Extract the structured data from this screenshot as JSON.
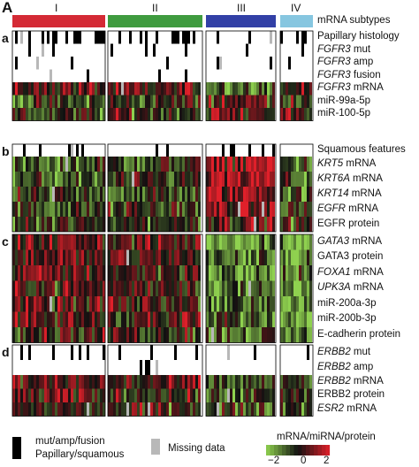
{
  "figure_letter": "A",
  "groups": [
    {
      "label": "I",
      "color": "#d42a35"
    },
    {
      "label": "II",
      "color": "#3f9b3f"
    },
    {
      "label": "III",
      "color": "#3240a6"
    },
    {
      "label": "IV",
      "color": "#86c6e0"
    }
  ],
  "subtype_label": "mRNA subtypes",
  "panels": [
    {
      "letter": "a",
      "rows": [
        {
          "pre": "",
          "ital": "",
          "post": "Papillary histology",
          "type": "binary",
          "density": 0.35
        },
        {
          "pre": "",
          "ital": "FGFR3",
          "post": " mut",
          "type": "binary",
          "density": 0.12
        },
        {
          "pre": "",
          "ital": "FGFR3",
          "post": " amp",
          "type": "binary",
          "density": 0.05
        },
        {
          "pre": "",
          "ital": "FGFR3",
          "post": " fusion",
          "type": "binary",
          "density": 0.03
        },
        {
          "pre": "",
          "ital": "FGFR3",
          "post": " mRNA",
          "type": "heat"
        },
        {
          "pre": "",
          "ital": "",
          "post": "miR-99a-5p",
          "type": "heat"
        },
        {
          "pre": "",
          "ital": "",
          "post": "miR-100-5p",
          "type": "heat"
        }
      ]
    },
    {
      "letter": "b",
      "rows": [
        {
          "pre": "",
          "ital": "",
          "post": "Squamous features",
          "type": "binary",
          "density": 0.08
        },
        {
          "pre": "",
          "ital": "KRT5",
          "post": " mRNA",
          "type": "heat"
        },
        {
          "pre": "",
          "ital": "KRT6A",
          "post": " mRNA",
          "type": "heat"
        },
        {
          "pre": "",
          "ital": "KRT14",
          "post": " mRNA",
          "type": "heat"
        },
        {
          "pre": "",
          "ital": "EGFR",
          "post": " mRNA",
          "type": "heat"
        },
        {
          "pre": "",
          "ital": "",
          "post": "EGFR protein",
          "type": "heat"
        }
      ]
    },
    {
      "letter": "c",
      "rows": [
        {
          "pre": "",
          "ital": "GATA3",
          "post": " mRNA",
          "type": "heat"
        },
        {
          "pre": "",
          "ital": "",
          "post": "GATA3 protein",
          "type": "heat"
        },
        {
          "pre": "",
          "ital": "FOXA1",
          "post": " mRNA",
          "type": "heat"
        },
        {
          "pre": "",
          "ital": "UPK3A",
          "post": " mRNA",
          "type": "heat"
        },
        {
          "pre": "",
          "ital": "",
          "post": "miR-200a-3p",
          "type": "heat"
        },
        {
          "pre": "",
          "ital": "",
          "post": "miR-200b-3p",
          "type": "heat"
        },
        {
          "pre": "",
          "ital": "",
          "post": "E-cadherin protein",
          "type": "heat"
        }
      ]
    },
    {
      "letter": "d",
      "rows": [
        {
          "pre": "",
          "ital": "ERBB2",
          "post": " mut",
          "type": "binary",
          "density": 0.08
        },
        {
          "pre": "",
          "ital": "ERBB2",
          "post": " amp",
          "type": "binary",
          "density": 0.04
        },
        {
          "pre": "",
          "ital": "ERBB2",
          "post": " mRNA",
          "type": "heat"
        },
        {
          "pre": "",
          "ital": "",
          "post": "ERBB2 protein",
          "type": "heat"
        },
        {
          "pre": "",
          "ital": "ESR2",
          "post": " mRNA",
          "type": "heat"
        }
      ]
    }
  ],
  "legend": {
    "black_label_1": "mut/amp/fusion",
    "black_label_2": "Papillary/squamous",
    "gray_label": "Missing data",
    "scale_title": "mRNA/miRNA/protein",
    "ticks": [
      "−2",
      "0",
      "2"
    ],
    "colors": {
      "low": "#8fd14f",
      "mid": "#111111",
      "high": "#e0202a",
      "missing": "#b8b8b8",
      "binary": "#000000"
    }
  }
}
